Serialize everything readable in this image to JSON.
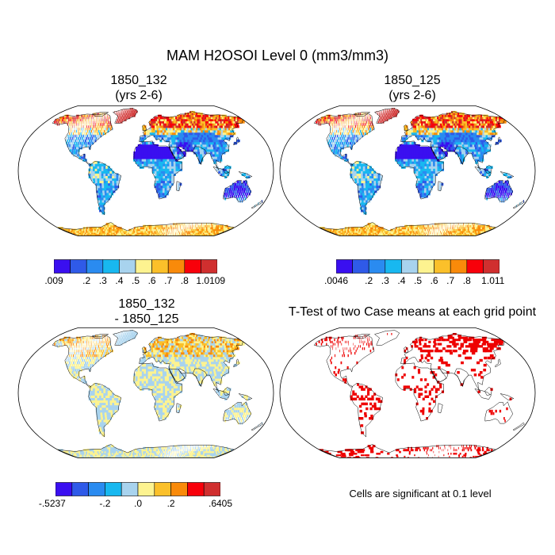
{
  "page_title": "MAM H2OSOI Level 0 (mm3/mm3)",
  "colors": {
    "scale": [
      "#3a0ff0",
      "#2f5ae8",
      "#2a8bf0",
      "#18b8f0",
      "#a8d3ee",
      "#fdf390",
      "#fbc02a",
      "#f98a0a",
      "#f8000a",
      "#d02f2f"
    ],
    "land_wet_north": "#e86d20",
    "significance": "#ee0000",
    "outline": "#000000"
  },
  "panels": [
    {
      "id": "case1",
      "title_line1": "1850_132",
      "title_line2": "(yrs 2-6)",
      "colorbar_labels": [
        ".009",
        ".2",
        ".3",
        ".4",
        ".5",
        ".6",
        ".7",
        ".8",
        "1.0109"
      ]
    },
    {
      "id": "case2",
      "title_line1": "1850_125",
      "title_line2": "(yrs 2-6)",
      "colorbar_labels": [
        ".0046",
        ".2",
        ".3",
        ".4",
        ".5",
        ".6",
        ".7",
        ".8",
        "1.011"
      ]
    },
    {
      "id": "difference",
      "title_line1": "1850_132",
      "title_line2": "- 1850_125",
      "colorbar_labels": [
        "-.5237",
        "-.2",
        ".0",
        ".2",
        ".6405"
      ]
    },
    {
      "id": "ttest",
      "title_line1": "T-Test of two Case means at each grid point",
      "note": "Cells are significant at 0.1 level"
    }
  ]
}
